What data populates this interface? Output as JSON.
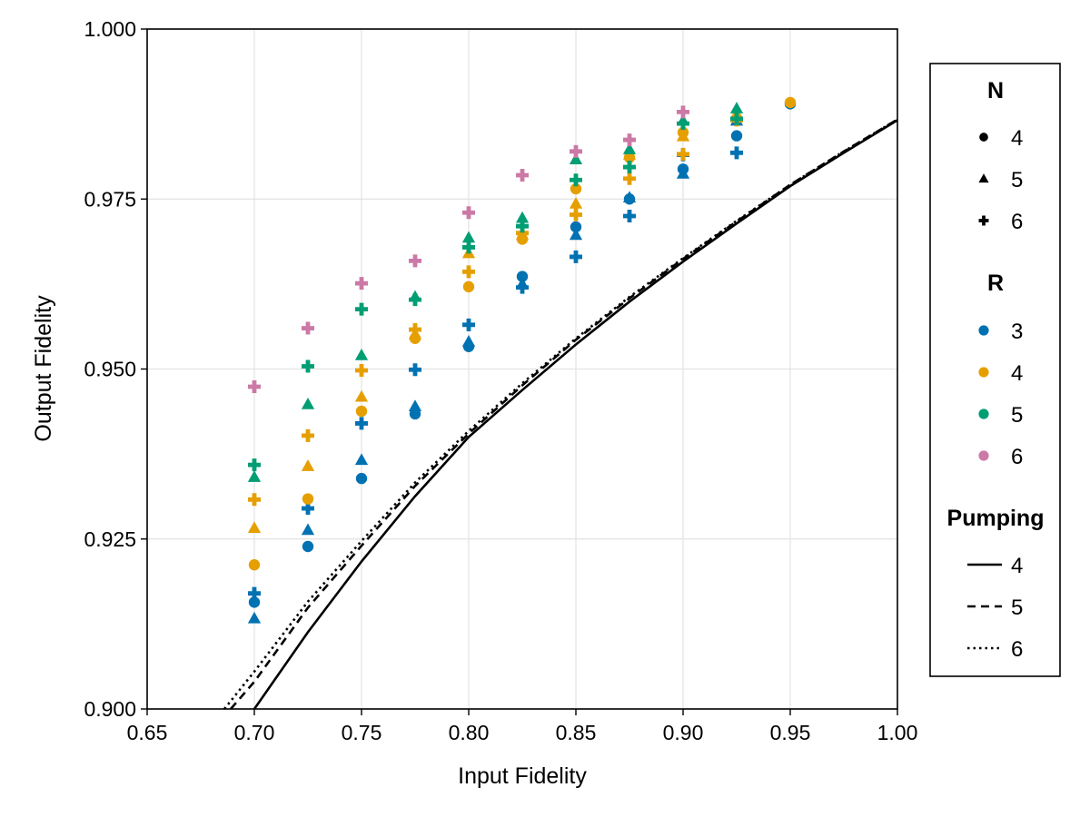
{
  "chart_data": {
    "type": "scatter",
    "xlabel": "Input Fidelity",
    "ylabel": "Output Fidelity",
    "xlim": [
      0.65,
      1.0
    ],
    "ylim": [
      0.9,
      1.0
    ],
    "xticks": [
      "0.65",
      "0.70",
      "0.75",
      "0.80",
      "0.85",
      "0.90",
      "0.95",
      "1.00"
    ],
    "yticks": [
      "0.900",
      "0.925",
      "0.950",
      "0.975",
      "1.000"
    ],
    "grid": true,
    "legend_placement": "right",
    "colors": {
      "R3": "#0072b2",
      "R4": "#e69f00",
      "R5": "#009e73",
      "R6": "#cc79a7",
      "line": "#000000"
    },
    "legend": {
      "groups": [
        {
          "title": "N",
          "items": [
            {
              "label": "4",
              "marker": "circle"
            },
            {
              "label": "5",
              "marker": "triangle"
            },
            {
              "label": "6",
              "marker": "cross"
            }
          ]
        },
        {
          "title": "R",
          "items": [
            {
              "label": "3",
              "color": "#0072b2"
            },
            {
              "label": "4",
              "color": "#e69f00"
            },
            {
              "label": "5",
              "color": "#009e73"
            },
            {
              "label": "6",
              "color": "#cc79a7"
            }
          ]
        },
        {
          "title": "Pumping",
          "items": [
            {
              "label": "4",
              "dash": "solid"
            },
            {
              "label": "5",
              "dash": "dashed"
            },
            {
              "label": "6",
              "dash": "dotted"
            }
          ]
        }
      ]
    },
    "scatter_series": [
      {
        "N": "4",
        "R": "3",
        "points": [
          [
            0.7,
            0.9157
          ],
          [
            0.725,
            0.9239
          ],
          [
            0.75,
            0.9339
          ],
          [
            0.775,
            0.9434
          ],
          [
            0.8,
            0.9533
          ],
          [
            0.825,
            0.9636
          ],
          [
            0.85,
            0.9709
          ],
          [
            0.875,
            0.975
          ],
          [
            0.9,
            0.9794
          ],
          [
            0.925,
            0.9843
          ],
          [
            0.95,
            0.989
          ]
        ]
      },
      {
        "N": "5",
        "R": "3",
        "points": [
          [
            0.7,
            0.9133
          ],
          [
            0.725,
            0.9263
          ],
          [
            0.75,
            0.9366
          ],
          [
            0.775,
            0.9445
          ],
          [
            0.8,
            0.954
          ],
          [
            0.825,
            0.9625
          ],
          [
            0.85,
            0.9697
          ],
          [
            0.875,
            0.9752
          ],
          [
            0.9,
            0.9787
          ],
          [
            0.925,
            0.9865
          ]
        ]
      },
      {
        "N": "6",
        "R": "3",
        "points": [
          [
            0.7,
            0.917
          ],
          [
            0.725,
            0.9295
          ],
          [
            0.75,
            0.942
          ],
          [
            0.775,
            0.9499
          ],
          [
            0.8,
            0.9565
          ],
          [
            0.825,
            0.962
          ],
          [
            0.85,
            0.9665
          ],
          [
            0.875,
            0.9725
          ],
          [
            0.9,
            0.9815
          ],
          [
            0.925,
            0.9818
          ]
        ]
      },
      {
        "N": "4",
        "R": "4",
        "points": [
          [
            0.7,
            0.9212
          ],
          [
            0.725,
            0.9309
          ],
          [
            0.75,
            0.9438
          ],
          [
            0.775,
            0.9545
          ],
          [
            0.8,
            0.9621
          ],
          [
            0.825,
            0.9691
          ],
          [
            0.85,
            0.9765
          ],
          [
            0.875,
            0.9811
          ],
          [
            0.9,
            0.9848
          ],
          [
            0.925,
            0.9869
          ],
          [
            0.95,
            0.9892
          ]
        ]
      },
      {
        "N": "5",
        "R": "4",
        "points": [
          [
            0.7,
            0.9266
          ],
          [
            0.725,
            0.9357
          ],
          [
            0.75,
            0.9459
          ],
          [
            0.775,
            0.9551
          ],
          [
            0.8,
            0.967
          ],
          [
            0.825,
            0.9697
          ],
          [
            0.85,
            0.9743
          ],
          [
            0.875,
            0.9815
          ],
          [
            0.9,
            0.9842
          ],
          [
            0.925,
            0.9873
          ]
        ]
      },
      {
        "N": "6",
        "R": "4",
        "points": [
          [
            0.7,
            0.9308
          ],
          [
            0.725,
            0.9402
          ],
          [
            0.75,
            0.9498
          ],
          [
            0.775,
            0.9558
          ],
          [
            0.8,
            0.9643
          ],
          [
            0.825,
            0.97
          ],
          [
            0.85,
            0.9727
          ],
          [
            0.875,
            0.978
          ],
          [
            0.9,
            0.9816
          ],
          [
            0.925,
            0.9866
          ]
        ]
      },
      {
        "N": "5",
        "R": "5",
        "points": [
          [
            0.7,
            0.9341
          ],
          [
            0.725,
            0.9448
          ],
          [
            0.75,
            0.952
          ],
          [
            0.775,
            0.9606
          ],
          [
            0.8,
            0.9693
          ],
          [
            0.825,
            0.9722
          ],
          [
            0.85,
            0.9808
          ],
          [
            0.875,
            0.9823
          ],
          [
            0.9,
            0.9865
          ],
          [
            0.925,
            0.9883
          ]
        ]
      },
      {
        "N": "6",
        "R": "5",
        "points": [
          [
            0.7,
            0.9359
          ],
          [
            0.725,
            0.9504
          ],
          [
            0.75,
            0.9588
          ],
          [
            0.775,
            0.9602
          ],
          [
            0.8,
            0.9679
          ],
          [
            0.825,
            0.971
          ],
          [
            0.85,
            0.9778
          ],
          [
            0.875,
            0.9797
          ],
          [
            0.9,
            0.9861
          ],
          [
            0.925,
            0.9868
          ]
        ]
      },
      {
        "N": "6",
        "R": "6",
        "points": [
          [
            0.7,
            0.9474
          ],
          [
            0.725,
            0.956
          ],
          [
            0.75,
            0.9626
          ],
          [
            0.775,
            0.9659
          ],
          [
            0.8,
            0.973
          ],
          [
            0.825,
            0.9785
          ],
          [
            0.85,
            0.982
          ],
          [
            0.875,
            0.9837
          ],
          [
            0.9,
            0.9878
          ]
        ]
      }
    ],
    "line_series": [
      {
        "pumping": "4",
        "dash": "solid",
        "points": [
          [
            0.7,
            0.9
          ],
          [
            0.725,
            0.9113
          ],
          [
            0.75,
            0.9217
          ],
          [
            0.775,
            0.9313
          ],
          [
            0.8,
            0.94
          ],
          [
            0.825,
            0.9469
          ],
          [
            0.85,
            0.9536
          ],
          [
            0.875,
            0.9599
          ],
          [
            0.9,
            0.9658
          ],
          [
            0.925,
            0.9714
          ],
          [
            0.95,
            0.9769
          ],
          [
            0.975,
            0.9818
          ],
          [
            1.0,
            0.9866
          ]
        ]
      },
      {
        "pumping": "5",
        "dash": "dashed",
        "points": [
          [
            0.689,
            0.9
          ],
          [
            0.7,
            0.904
          ],
          [
            0.725,
            0.9149
          ],
          [
            0.75,
            0.924
          ],
          [
            0.775,
            0.9328
          ],
          [
            0.8,
            0.9405
          ],
          [
            0.825,
            0.9476
          ],
          [
            0.85,
            0.9543
          ],
          [
            0.875,
            0.9604
          ],
          [
            0.9,
            0.9662
          ],
          [
            0.925,
            0.9717
          ],
          [
            0.95,
            0.9771
          ],
          [
            0.975,
            0.982
          ],
          [
            1.0,
            0.9867
          ]
        ]
      },
      {
        "pumping": "6",
        "dash": "dotted",
        "points": [
          [
            0.686,
            0.9
          ],
          [
            0.7,
            0.9055
          ],
          [
            0.725,
            0.9158
          ],
          [
            0.75,
            0.9247
          ],
          [
            0.775,
            0.9333
          ],
          [
            0.8,
            0.9409
          ],
          [
            0.825,
            0.9479
          ],
          [
            0.85,
            0.9545
          ],
          [
            0.875,
            0.9606
          ],
          [
            0.9,
            0.9663
          ],
          [
            0.925,
            0.9718
          ],
          [
            0.95,
            0.9771
          ],
          [
            0.975,
            0.982
          ],
          [
            1.0,
            0.9867
          ]
        ]
      }
    ]
  }
}
